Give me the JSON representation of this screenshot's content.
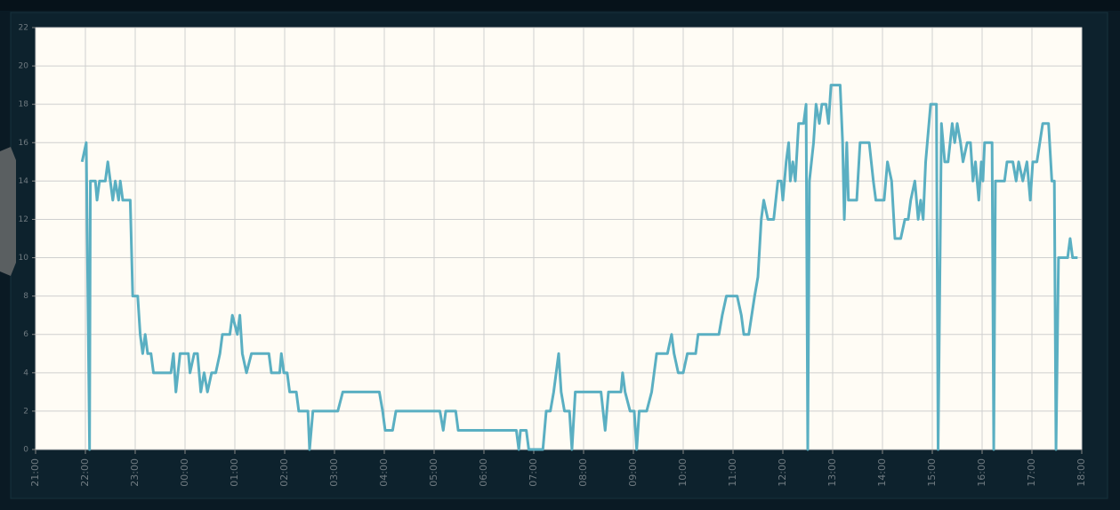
{
  "chart_data": {
    "type": "line",
    "xlim": [
      "21:00",
      "18:00"
    ],
    "xticks": [
      "21:00",
      "22:00",
      "23:00",
      "00:00",
      "01:00",
      "02:00",
      "03:00",
      "04:00",
      "05:00",
      "06:00",
      "07:00",
      "08:00",
      "09:00",
      "10:00",
      "11:00",
      "12:00",
      "13:00",
      "14:00",
      "15:00",
      "16:00",
      "17:00",
      "18:00"
    ],
    "ylim": [
      0,
      22
    ],
    "yticks": [
      0,
      2,
      4,
      6,
      8,
      10,
      12,
      14,
      16,
      18,
      20,
      22
    ],
    "grid": true,
    "x": [
      "21:56",
      "22:01",
      "22:05",
      "22:06",
      "22:12",
      "22:14",
      "22:17",
      "22:24",
      "22:27",
      "22:30",
      "22:33",
      "22:36",
      "22:40",
      "22:42",
      "22:45",
      "22:54",
      "22:57",
      "23:03",
      "23:06",
      "23:09",
      "23:12",
      "23:15",
      "23:19",
      "23:22",
      "23:43",
      "23:46",
      "23:49",
      "23:54",
      "00:04",
      "00:06",
      "00:11",
      "00:15",
      "00:19",
      "00:23",
      "00:27",
      "00:32",
      "00:37",
      "00:42",
      "00:45",
      "00:54",
      "00:57",
      "01:03",
      "01:06",
      "01:09",
      "01:14",
      "01:20",
      "01:41",
      "01:44",
      "01:54",
      "01:56",
      "01:59",
      "02:03",
      "02:06",
      "02:14",
      "02:17",
      "02:28",
      "02:30",
      "02:34",
      "03:04",
      "03:10",
      "03:54",
      "03:58",
      "04:01",
      "04:10",
      "04:14",
      "05:07",
      "05:11",
      "05:14",
      "05:26",
      "05:29",
      "06:39",
      "06:42",
      "06:44",
      "06:51",
      "06:54",
      "07:11",
      "07:15",
      "07:20",
      "07:24",
      "07:27",
      "07:30",
      "07:33",
      "07:37",
      "07:43",
      "07:46",
      "07:50",
      "08:21",
      "08:26",
      "08:30",
      "08:45",
      "08:47",
      "08:50",
      "08:56",
      "09:01",
      "09:04",
      "09:07",
      "09:16",
      "09:22",
      "09:28",
      "09:41",
      "09:46",
      "09:49",
      "09:54",
      "10:00",
      "10:05",
      "10:15",
      "10:18",
      "10:43",
      "10:47",
      "10:52",
      "11:05",
      "11:10",
      "11:13",
      "11:19",
      "11:26",
      "11:30",
      "11:34",
      "11:37",
      "11:42",
      "11:49",
      "11:54",
      "11:58",
      "12:00",
      "12:04",
      "12:07",
      "12:09",
      "12:12",
      "12:15",
      "12:19",
      "12:25",
      "12:28",
      "12:30",
      "12:32",
      "12:37",
      "12:40",
      "12:44",
      "12:47",
      "12:52",
      "12:55",
      "12:58",
      "13:09",
      "13:12",
      "13:14",
      "13:17",
      "13:19",
      "13:29",
      "13:33",
      "13:44",
      "13:49",
      "13:52",
      "14:02",
      "14:06",
      "14:11",
      "14:15",
      "14:22",
      "14:27",
      "14:31",
      "14:34",
      "14:39",
      "14:43",
      "14:46",
      "14:49",
      "14:52",
      "14:58",
      "15:05",
      "15:07",
      "15:11",
      "15:15",
      "15:19",
      "15:24",
      "15:27",
      "15:30",
      "15:34",
      "15:37",
      "15:42",
      "15:46",
      "15:49",
      "15:52",
      "15:56",
      "15:59",
      "16:01",
      "16:03",
      "16:12",
      "16:14",
      "16:16",
      "16:27",
      "16:30",
      "16:37",
      "16:41",
      "16:44",
      "16:49",
      "16:54",
      "16:58",
      "17:01",
      "17:06",
      "17:13",
      "17:20",
      "17:24",
      "17:27",
      "17:29",
      "17:32",
      "17:43",
      "17:46",
      "17:49",
      "17:55"
    ],
    "series": [
      {
        "color": "#5aafc2",
        "values": [
          15,
          16,
          0,
          14,
          14,
          13,
          14,
          14,
          15,
          14,
          13,
          14,
          13,
          14,
          13,
          13,
          8,
          8,
          6,
          5,
          6,
          5,
          5,
          4,
          4,
          5,
          3,
          5,
          5,
          4,
          5,
          5,
          3,
          4,
          3,
          4,
          4,
          5,
          6,
          6,
          7,
          6,
          7,
          5,
          4,
          5,
          5,
          4,
          4,
          5,
          4,
          4,
          3,
          3,
          2,
          2,
          0,
          2,
          2,
          3,
          3,
          2,
          1,
          1,
          2,
          2,
          1,
          2,
          2,
          1,
          1,
          0,
          1,
          1,
          0,
          0,
          2,
          2,
          3,
          4,
          5,
          3,
          2,
          2,
          0,
          3,
          3,
          1,
          3,
          3,
          4,
          3,
          2,
          2,
          0,
          2,
          2,
          3,
          5,
          5,
          6,
          5,
          4,
          4,
          5,
          5,
          6,
          6,
          7,
          8,
          8,
          7,
          6,
          6,
          8,
          9,
          12,
          13,
          12,
          12,
          14,
          14,
          13,
          15,
          16,
          14,
          15,
          14,
          17,
          17,
          18,
          0,
          14,
          16,
          18,
          17,
          18,
          18,
          17,
          19,
          19,
          16,
          12,
          16,
          13,
          13,
          16,
          16,
          14,
          13,
          13,
          15,
          14,
          11,
          11,
          12,
          12,
          13,
          14,
          12,
          13,
          12,
          15,
          18,
          18,
          0,
          17,
          15,
          15,
          17,
          16,
          17,
          16,
          15,
          16,
          16,
          14,
          15,
          13,
          15,
          14,
          16,
          16,
          0,
          14,
          14,
          15,
          15,
          14,
          15,
          14,
          15,
          13,
          15,
          15,
          17,
          17,
          14,
          14,
          0,
          10,
          10,
          11,
          10,
          10
        ]
      }
    ]
  }
}
